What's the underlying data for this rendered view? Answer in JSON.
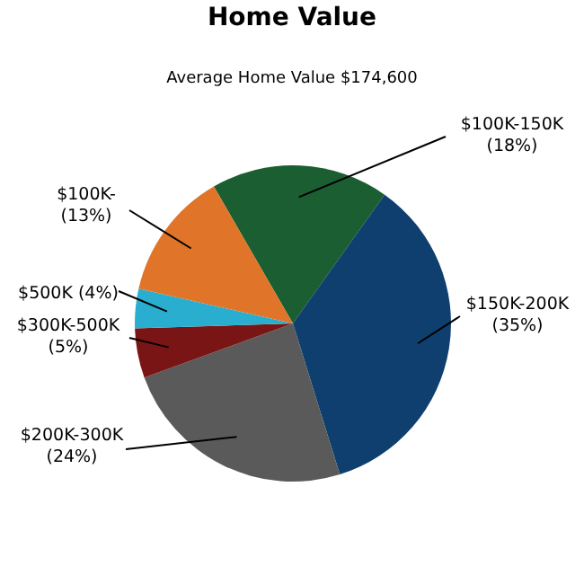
{
  "chart_data": {
    "type": "pie",
    "title": "Home Value",
    "subtitle": "Average Home Value  $174,600",
    "categories": [
      "$100K-150K",
      "$150K-200K",
      "$200K-300K",
      "$300K-500K",
      "$500K",
      "$100K-"
    ],
    "values": [
      18,
      35,
      24,
      5,
      4,
      13
    ],
    "value_labels": [
      "(18%)",
      "(35%)",
      "(24%)",
      "(5%)",
      "(4%)",
      "(13%)"
    ],
    "colors": [
      "#1a5e32",
      "#0e3f6e",
      "#5a5a5a",
      "#7a1515",
      "#2aaed0",
      "#e07428"
    ]
  }
}
